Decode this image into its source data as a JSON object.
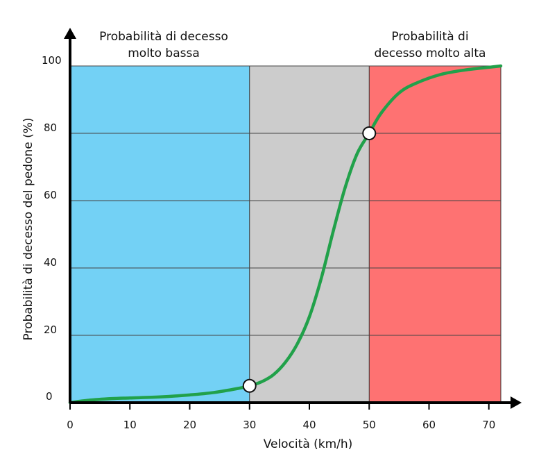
{
  "chart_data": {
    "type": "line",
    "xlabel": "Velocità (km/h)",
    "ylabel": "Probabilità di decesso del pedone (%)",
    "xlim": [
      0,
      72
    ],
    "ylim": [
      0,
      100
    ],
    "x_ticks": [
      0,
      10,
      20,
      30,
      40,
      50,
      60,
      70
    ],
    "y_ticks": [
      0,
      20,
      40,
      60,
      80,
      100
    ],
    "grid": "horizontal lines at y ticks",
    "zones": [
      {
        "label_lines": [
          "Probabilità di decesso",
          "molto bassa"
        ],
        "x_start": 0,
        "x_end": 30,
        "color": "#73d1f5"
      },
      {
        "label_lines": [],
        "x_start": 30,
        "x_end": 50,
        "color": "#cccccc"
      },
      {
        "label_lines": [
          "Probabilità di",
          "decesso molto alta"
        ],
        "x_start": 50,
        "x_end": 72,
        "color": "#fe7272"
      }
    ],
    "series": [
      {
        "color": "#21a14a",
        "x": [
          0,
          3,
          7,
          10,
          15,
          20,
          24,
          28,
          30,
          32,
          34,
          36,
          38,
          40,
          42,
          44,
          46,
          48,
          50,
          52,
          55,
          58,
          62,
          66,
          70,
          72
        ],
        "y": [
          0,
          0.7,
          1.2,
          1.4,
          1.7,
          2.3,
          3,
          4.2,
          5,
          6.2,
          8.3,
          12,
          17.5,
          25.5,
          37,
          51,
          64,
          74,
          80,
          86,
          92,
          95,
          97.5,
          98.8,
          99.6,
          100
        ]
      }
    ],
    "markers": [
      {
        "x": 30,
        "y": 5
      },
      {
        "x": 50,
        "y": 80
      }
    ]
  }
}
